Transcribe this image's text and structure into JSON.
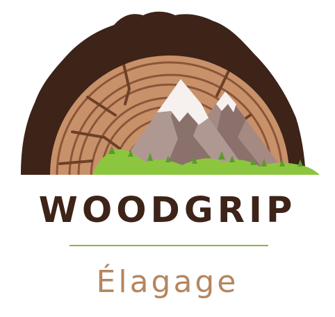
{
  "logo": {
    "brand_name": "WOODGRIP",
    "tagline": "Élagage",
    "colors": {
      "bark": "#3d2318",
      "wood_light": "#c8916a",
      "wood_ring": "#8a5538",
      "mountain_dark": "#8a716b",
      "mountain_light": "#b09892",
      "snow": "#f6f0ef",
      "grass": "#8cc63f",
      "tree": "#5c9a2f",
      "divider": "#8cb53d",
      "tagline": "#b5865f"
    },
    "icons": {
      "emblem": "log-slice-mountain-icon"
    }
  }
}
